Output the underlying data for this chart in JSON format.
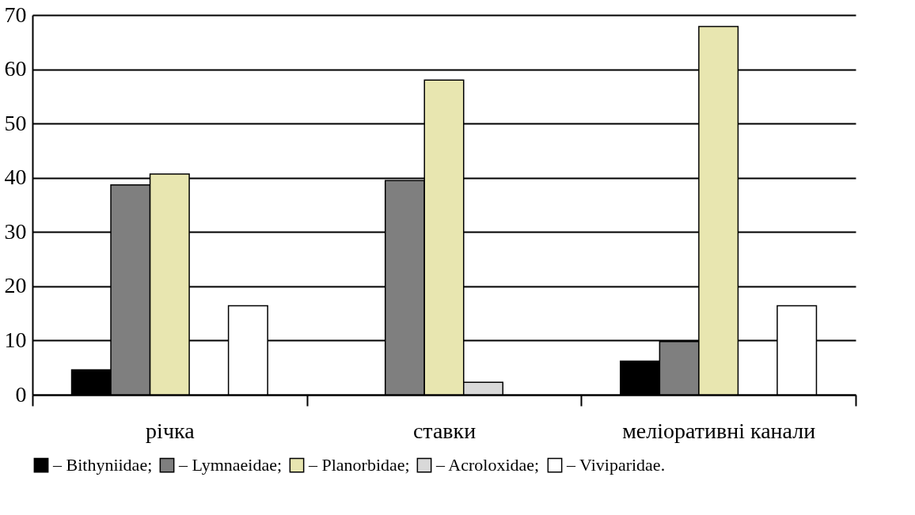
{
  "chart_data": {
    "type": "bar",
    "categories": [
      "річка",
      "ставки",
      "меліоративні канали"
    ],
    "series": [
      {
        "name": "– Bithyniidae;",
        "color": "#000000",
        "values": [
          4.6,
          null,
          6.2
        ]
      },
      {
        "name": "– Lymnaeidae;",
        "color": "#7f7f7f",
        "values": [
          38.7,
          39.5,
          9.8
        ]
      },
      {
        "name": "– Planorbidae;",
        "color": "#e8e6b0",
        "values": [
          40.7,
          58,
          67.9
        ]
      },
      {
        "name": "– Acroloxidae;",
        "color": "#d9d9d9",
        "values": [
          null,
          2.3,
          null
        ]
      },
      {
        "name": "– Viviparidae.",
        "color": "#ffffff",
        "values": [
          16.4,
          null,
          16.4
        ]
      }
    ],
    "ylim": [
      0,
      70
    ],
    "yticks": [
      0,
      10,
      20,
      30,
      40,
      50,
      60,
      70
    ],
    "grid": "y",
    "legend": "bottom"
  }
}
